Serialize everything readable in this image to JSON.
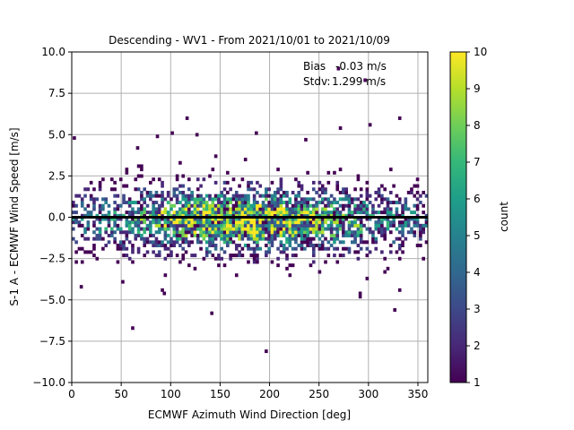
{
  "chart_data": {
    "type": "heatmap",
    "title": "Descending - WV1 - From 2021/10/01 to 2021/10/09",
    "xlabel": "ECMWF Azimuth Wind Direction [deg]",
    "ylabel": "S-1 A - ECMWF Wind Speed [m/s]",
    "xlim": [
      0,
      360
    ],
    "ylim": [
      -10.0,
      10.0
    ],
    "xticks": [
      0,
      50,
      100,
      150,
      200,
      250,
      300,
      350
    ],
    "xtick_labels": [
      "0",
      "50",
      "100",
      "150",
      "200",
      "250",
      "300",
      "350"
    ],
    "yticks": [
      -10.0,
      -7.5,
      -5.0,
      -2.5,
      0.0,
      2.5,
      5.0,
      7.5,
      10.0
    ],
    "ytick_labels": [
      "−10.0",
      "−7.5",
      "−5.0",
      "−2.5",
      "0.0",
      "2.5",
      "5.0",
      "7.5",
      "10.0"
    ],
    "grid": true,
    "annotation": {
      "bias_label": "Bias",
      "bias_value": "-0.03 m/s",
      "stdv_label": "Stdv:",
      "stdv_value": "1.299 m/s"
    },
    "mean_line_y": 0.0,
    "colorbar": {
      "label": "count",
      "min": 1,
      "max": 10,
      "ticks": [
        1,
        2,
        3,
        4,
        5,
        6,
        7,
        8,
        9,
        10
      ],
      "colormap": "viridis"
    },
    "bin_width_x": 3,
    "bin_height_y": 0.2,
    "density_center": {
      "x": 175,
      "y": -0.3
    },
    "outliers": [
      {
        "x": 1,
        "y": 4.7
      },
      {
        "x": 60,
        "y": -6.8
      },
      {
        "x": 115,
        "y": 5.9
      },
      {
        "x": 140,
        "y": -5.9
      },
      {
        "x": 195,
        "y": -8.2
      },
      {
        "x": 330,
        "y": 5.9
      },
      {
        "x": 90,
        "y": -4.5
      },
      {
        "x": 92,
        "y": -4.7
      },
      {
        "x": 290,
        "y": -4.7
      },
      {
        "x": 290,
        "y": -4.9
      },
      {
        "x": 325,
        "y": -5.7
      },
      {
        "x": 8,
        "y": -4.3
      },
      {
        "x": 268,
        "y": 8.9
      },
      {
        "x": 295,
        "y": 8.2
      },
      {
        "x": 100,
        "y": 5.0
      },
      {
        "x": 85,
        "y": 4.8
      },
      {
        "x": 65,
        "y": 4.1
      },
      {
        "x": 185,
        "y": 5.0
      },
      {
        "x": 125,
        "y": 4.9
      },
      {
        "x": 300,
        "y": 5.5
      },
      {
        "x": 270,
        "y": 5.3
      },
      {
        "x": 235,
        "y": 4.6
      },
      {
        "x": 330,
        "y": -4.5
      },
      {
        "x": 50,
        "y": -4.0
      }
    ],
    "colors": {
      "grid": "#b0b0b0",
      "mean_line": "#000000",
      "viridis": [
        "#440154",
        "#482878",
        "#3e4989",
        "#31688e",
        "#26828e",
        "#1f9e89",
        "#35b779",
        "#6ece58",
        "#b5de2b",
        "#fde725"
      ]
    }
  }
}
